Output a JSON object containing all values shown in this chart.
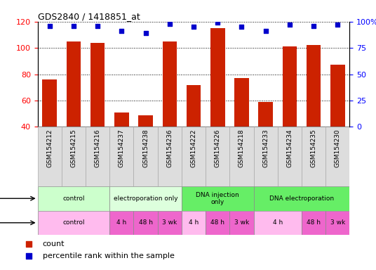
{
  "title": "GDS2840 / 1418851_at",
  "samples": [
    "GSM154212",
    "GSM154215",
    "GSM154216",
    "GSM154237",
    "GSM154238",
    "GSM154236",
    "GSM154222",
    "GSM154226",
    "GSM154218",
    "GSM154233",
    "GSM154234",
    "GSM154235",
    "GSM154230"
  ],
  "counts": [
    76,
    105,
    104,
    51,
    49,
    105,
    72,
    115,
    77,
    59,
    101,
    102,
    87
  ],
  "percentile": [
    96,
    96,
    96,
    91,
    89,
    98,
    95,
    99,
    95,
    91,
    97,
    96,
    97
  ],
  "ylim_left": [
    40,
    120
  ],
  "ylim_right": [
    0,
    100
  ],
  "yticks_left": [
    40,
    60,
    80,
    100,
    120
  ],
  "yticks_right": [
    0,
    25,
    50,
    75,
    100
  ],
  "ytick_labels_right": [
    "0",
    "25",
    "50",
    "75",
    "100%"
  ],
  "bar_color": "#cc2200",
  "dot_color": "#0000cc",
  "plot_bg": "#ffffff",
  "protocol_groups": [
    {
      "label": "control",
      "start": 0,
      "end": 3,
      "color": "#ccffcc"
    },
    {
      "label": "electroporation only",
      "start": 3,
      "end": 6,
      "color": "#ddffdd"
    },
    {
      "label": "DNA injection\nonly",
      "start": 6,
      "end": 9,
      "color": "#66ee66"
    },
    {
      "label": "DNA electroporation",
      "start": 9,
      "end": 13,
      "color": "#66ee66"
    }
  ],
  "time_groups": [
    {
      "label": "control",
      "start": 0,
      "end": 3,
      "color": "#ffbbee"
    },
    {
      "label": "4 h",
      "start": 3,
      "end": 4,
      "color": "#ee66cc"
    },
    {
      "label": "48 h",
      "start": 4,
      "end": 5,
      "color": "#ee66cc"
    },
    {
      "label": "3 wk",
      "start": 5,
      "end": 6,
      "color": "#ee66cc"
    },
    {
      "label": "4 h",
      "start": 6,
      "end": 7,
      "color": "#ffbbee"
    },
    {
      "label": "48 h",
      "start": 7,
      "end": 8,
      "color": "#ee66cc"
    },
    {
      "label": "3 wk",
      "start": 8,
      "end": 9,
      "color": "#ee66cc"
    },
    {
      "label": "4 h",
      "start": 9,
      "end": 11,
      "color": "#ffbbee"
    },
    {
      "label": "48 h",
      "start": 11,
      "end": 12,
      "color": "#ee66cc"
    },
    {
      "label": "3 wk",
      "start": 12,
      "end": 13,
      "color": "#ee66cc"
    }
  ],
  "legend_items": [
    {
      "color": "#cc2200",
      "label": "count"
    },
    {
      "color": "#0000cc",
      "label": "percentile rank within the sample"
    }
  ]
}
